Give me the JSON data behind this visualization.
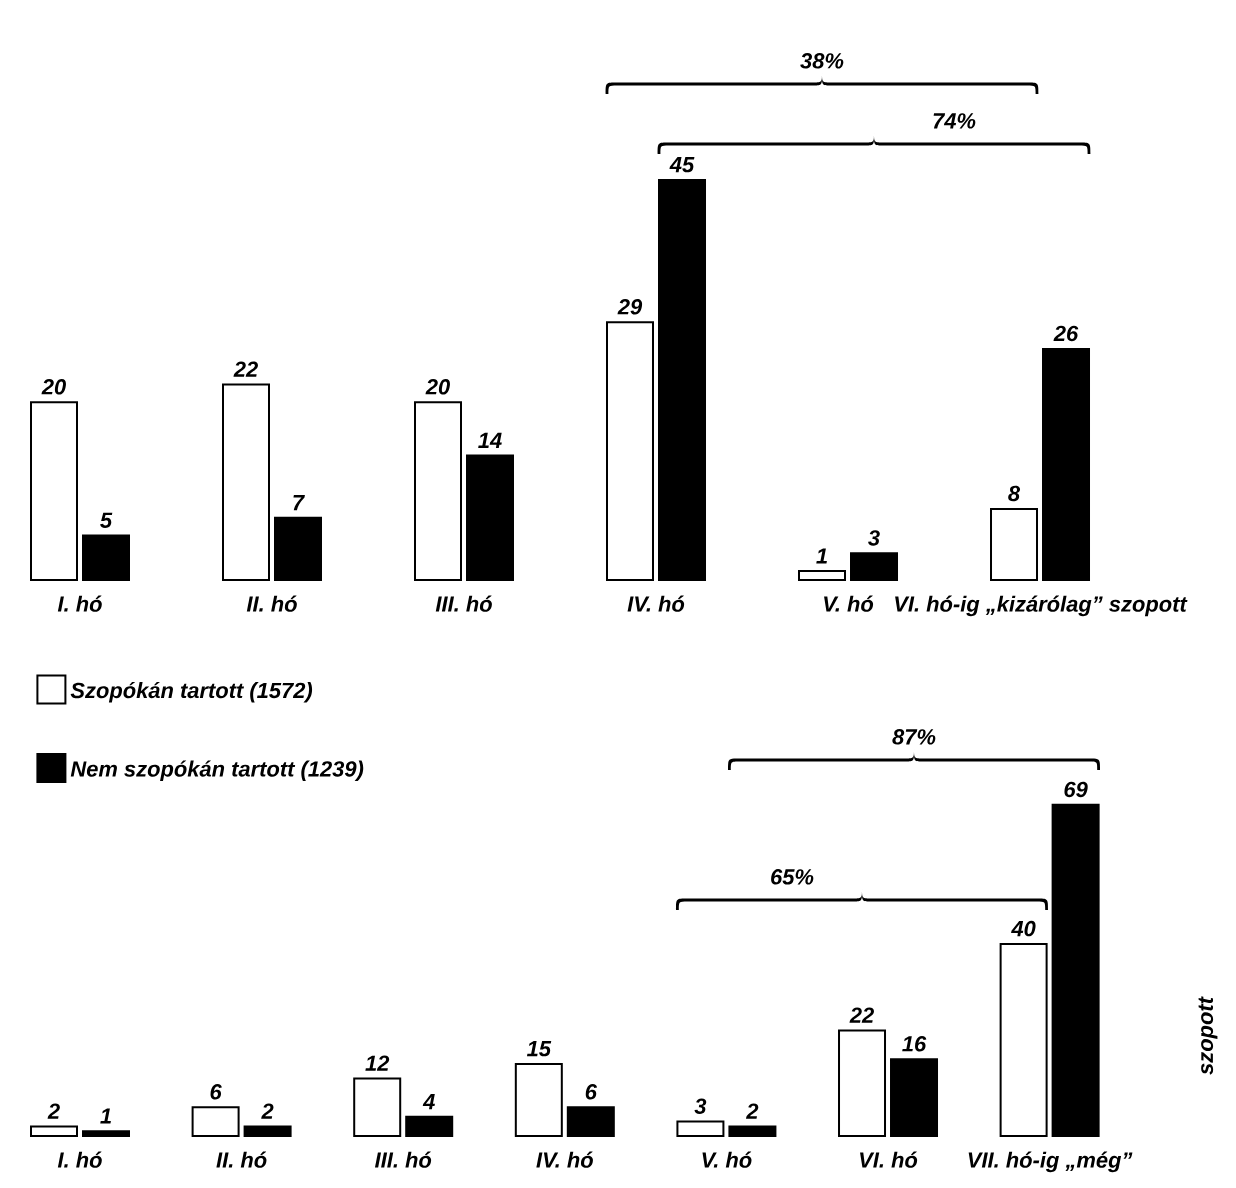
{
  "chart_data": [
    {
      "type": "bar",
      "categories": [
        "I. hó",
        "II. hó",
        "III. hó",
        "IV. hó",
        "V. hó",
        "VI. hó-ig „kizárólag” szopott"
      ],
      "series": [
        {
          "color": "#ffffff",
          "values": [
            20,
            22,
            20,
            29,
            1,
            8
          ]
        },
        {
          "color": "#000000",
          "values": [
            5,
            7,
            14,
            45,
            3,
            26
          ]
        }
      ],
      "ylim": [
        0,
        45
      ],
      "tick_labels": "x",
      "data_labels": true,
      "annotations": [
        "38%",
        "74%"
      ]
    },
    {
      "type": "bar",
      "categories": [
        "I. hó",
        "II. hó",
        "III. hó",
        "IV. hó",
        "V. hó",
        "VI. hó",
        "VII. hó-ig „még”"
      ],
      "series": [
        {
          "name": "Szopókán tartott (1572)",
          "color": "#ffffff",
          "values": [
            2,
            6,
            12,
            15,
            3,
            22,
            40
          ]
        },
        {
          "name": "Nem szopókán tartott (1239)",
          "color": "#000000",
          "values": [
            1,
            2,
            4,
            6,
            2,
            16,
            69
          ]
        }
      ],
      "ylim": [
        0,
        70
      ],
      "tick_labels": "x",
      "data_labels": true,
      "legend": "top left",
      "annotations": [
        "65%",
        "87%",
        "szopott"
      ]
    }
  ]
}
